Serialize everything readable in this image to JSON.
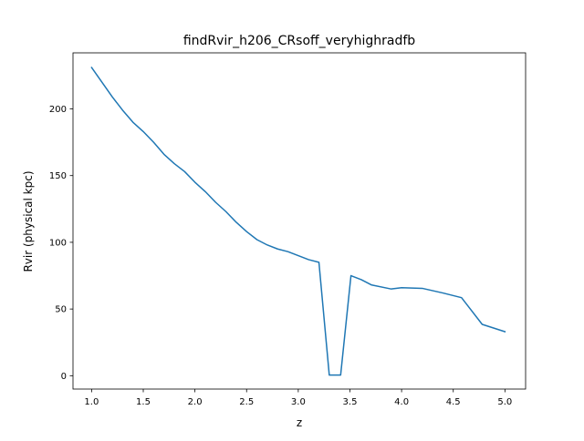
{
  "chart_data": {
    "type": "line",
    "title": "findRvir_h206_CRsoff_veryhighradfb",
    "xlabel": "z",
    "ylabel": "Rvir (physical kpc)",
    "xlim": [
      0.82,
      5.2
    ],
    "ylim": [
      -10,
      242
    ],
    "x_ticks": [
      1.0,
      1.5,
      2.0,
      2.5,
      3.0,
      3.5,
      4.0,
      4.5,
      5.0
    ],
    "x_tick_labels": [
      "1.0",
      "1.5",
      "2.0",
      "2.5",
      "3.0",
      "3.5",
      "4.0",
      "4.5",
      "5.0"
    ],
    "y_ticks": [
      0,
      50,
      100,
      150,
      200
    ],
    "y_tick_labels": [
      "0",
      "50",
      "100",
      "150",
      "200"
    ],
    "grid": false,
    "series": [
      {
        "color": "#1f77b4",
        "x": [
          1.0,
          1.1,
          1.2,
          1.3,
          1.4,
          1.5,
          1.6,
          1.7,
          1.8,
          1.9,
          2.0,
          2.1,
          2.2,
          2.3,
          2.4,
          2.5,
          2.6,
          2.7,
          2.8,
          2.9,
          3.0,
          3.1,
          3.2,
          3.3,
          3.41,
          3.51,
          3.61,
          3.71,
          3.9,
          4.0,
          4.2,
          4.4,
          4.58,
          4.78,
          5.0
        ],
        "y": [
          231,
          220,
          209,
          199,
          190,
          183,
          175,
          166,
          159,
          153,
          145,
          138,
          130,
          123,
          115,
          108,
          102,
          98,
          95,
          93,
          90,
          87,
          85,
          0.5,
          0.5,
          75,
          72,
          68,
          65,
          66,
          65.5,
          62,
          58.5,
          38.5,
          33
        ]
      }
    ]
  }
}
